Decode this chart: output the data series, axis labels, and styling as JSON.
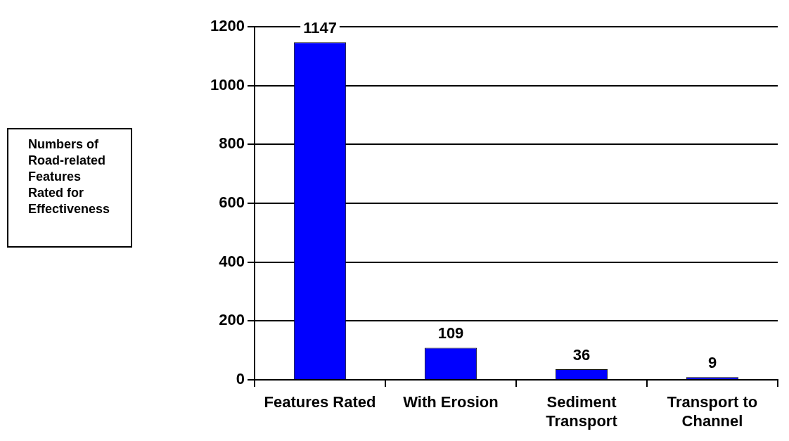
{
  "chart_data": {
    "type": "bar",
    "title": "Numbers of Road-related Features Rated for Effectiveness",
    "categories": [
      "Features Rated",
      "With Erosion",
      "Sediment Transport",
      "Transport to Channel"
    ],
    "values": [
      1147,
      109,
      36,
      9
    ],
    "color": "#0000ff",
    "ylim": [
      0,
      1200
    ],
    "yticks": [
      0,
      200,
      400,
      600,
      800,
      1000,
      1200
    ],
    "grid": "y",
    "data_labels": true
  }
}
